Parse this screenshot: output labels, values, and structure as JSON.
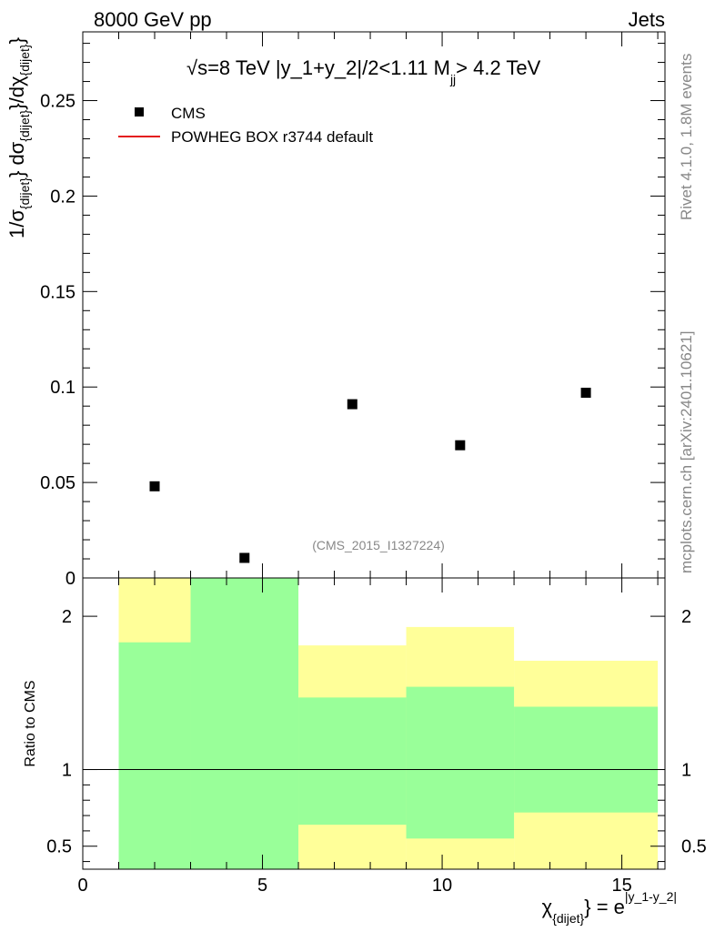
{
  "header": {
    "left": "8000 GeV pp",
    "right": "Jets"
  },
  "side_labels": {
    "rivet": "Rivet 4.1.0, 1.8M events",
    "mcplots": "mcplots.cern.ch [arXiv:2401.10621]"
  },
  "chart_data": [
    {
      "type": "scatter",
      "title": "√s=8 TeV |y_1+y_2|/2<1.11 M_jj> 4.2 TeV",
      "title_parts": {
        "sqrt": "√",
        "main": "s=8 TeV |y_1+y_2|/2<1.11 M",
        "sub": "jj",
        "tail": "> 4.2 TeV"
      },
      "watermark": "(CMS_2015_I1327224)",
      "ylabel_parts": {
        "a": "1/σ",
        "a_sub": "{dijet}",
        "b": "} dσ",
        "b_sub": "{dijet}",
        "c": "}/dχ",
        "c_sub": "{dijet}",
        "d": "}"
      },
      "xlim": [
        0,
        16.2
      ],
      "ylim": [
        0,
        0.286
      ],
      "yticks": [
        0.05,
        0.1,
        0.15,
        0.2,
        0.25
      ],
      "ytick_labels": [
        "0.05",
        "0.1",
        "0.15",
        "0.2",
        "0.25"
      ],
      "ytick_zero_label": "0",
      "legend": [
        {
          "name": "CMS",
          "marker": "square",
          "color": "#000000"
        },
        {
          "name": "POWHEG BOX r3744 default",
          "marker": "line",
          "color": "#e41a1c"
        }
      ],
      "series": [
        {
          "name": "CMS",
          "x": [
            2.0,
            4.5,
            7.5,
            10.5,
            14.0
          ],
          "y": [
            0.048,
            0.0105,
            0.091,
            0.0695,
            0.097
          ]
        }
      ]
    },
    {
      "type": "area",
      "ylabel": "Ratio to CMS",
      "xlabel_parts": {
        "chi": "χ",
        "chi_sub": "{dijet}",
        "eq": "} = e",
        "exp": "|y_1-y_2|"
      },
      "xlim": [
        0,
        16.2
      ],
      "ylim": [
        0.35,
        2.25
      ],
      "xticks": [
        0,
        5,
        10,
        15
      ],
      "xtick_labels": [
        "0",
        "5",
        "10",
        "15"
      ],
      "yticks": [
        0.5,
        1,
        2
      ],
      "ytick_labels": [
        "0.5",
        "1",
        "2"
      ],
      "reference_line": 1,
      "bands": [
        {
          "name": "yellow",
          "color": "#ffff99",
          "bins": [
            {
              "x0": 1,
              "x1": 3,
              "low": 0.35,
              "high": 2.25
            },
            {
              "x0": 3,
              "x1": 6,
              "low": 0.35,
              "high": 2.25
            },
            {
              "x0": 6,
              "x1": 9,
              "low": 0.35,
              "high": 1.81
            },
            {
              "x0": 9,
              "x1": 12,
              "low": 0.35,
              "high": 1.93
            },
            {
              "x0": 12,
              "x1": 16,
              "low": 0.35,
              "high": 1.71
            }
          ]
        },
        {
          "name": "green",
          "color": "#99ff99",
          "bins": [
            {
              "x0": 1,
              "x1": 3,
              "low": 0.35,
              "high": 1.83
            },
            {
              "x0": 3,
              "x1": 6,
              "low": 0.35,
              "high": 2.25
            },
            {
              "x0": 6,
              "x1": 9,
              "low": 0.64,
              "high": 1.47
            },
            {
              "x0": 9,
              "x1": 12,
              "low": 0.55,
              "high": 1.54
            },
            {
              "x0": 12,
              "x1": 16,
              "low": 0.72,
              "high": 1.41
            }
          ]
        }
      ]
    }
  ]
}
